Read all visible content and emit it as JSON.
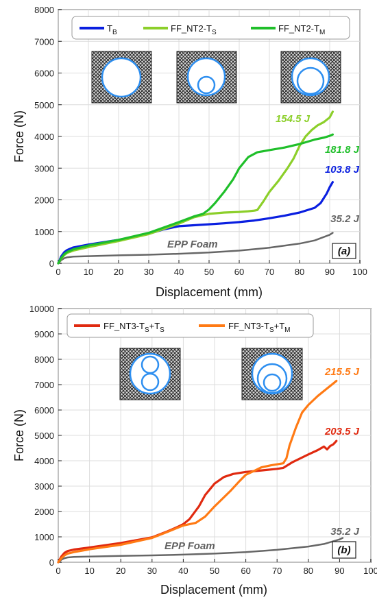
{
  "colors": {
    "T_B": "#0a1fe0",
    "FF_NT2_TS": "#8ccf2a",
    "FF_NT2_TM": "#1fbf2a",
    "FF_NT3_TS_TS": "#e02a10",
    "FF_NT3_TS_TM": "#ff7a14",
    "EPP": "#666666",
    "ring": "#2e8ff0"
  },
  "chart_data": [
    {
      "type": "line",
      "panel_label": "(a)",
      "xlabel": "Displacement (mm)",
      "ylabel": "Force (N)",
      "xlim": [
        0,
        100
      ],
      "ylim": [
        0,
        8000
      ],
      "x_ticks": [
        0,
        10,
        20,
        30,
        40,
        50,
        60,
        70,
        80,
        90,
        100
      ],
      "y_ticks": [
        0,
        1000,
        2000,
        3000,
        4000,
        5000,
        6000,
        7000,
        8000
      ],
      "grid": true,
      "legend_position": "top",
      "legend": [
        {
          "key": "T_B",
          "base": "T",
          "sub": "B"
        },
        {
          "key": "FF_NT2_TS",
          "base": "FF_NT2-T",
          "sub": "S"
        },
        {
          "key": "FF_NT2_TM",
          "base": "FF_NT2-T",
          "sub": "M"
        }
      ],
      "series": [
        {
          "key": "EPP",
          "annotation": "EPP Foam",
          "energy": "35.2 J",
          "x": [
            0,
            1,
            2,
            3,
            5,
            10,
            20,
            30,
            40,
            50,
            60,
            70,
            80,
            85,
            90,
            91
          ],
          "y": [
            0,
            100,
            160,
            190,
            210,
            225,
            250,
            270,
            300,
            340,
            400,
            490,
            620,
            720,
            900,
            960
          ]
        },
        {
          "key": "T_B",
          "energy": "103.8 J",
          "x": [
            0,
            1,
            2,
            3,
            5,
            10,
            20,
            30,
            35,
            40,
            45,
            50,
            55,
            60,
            65,
            70,
            75,
            80,
            85,
            87,
            88,
            89,
            90,
            91
          ],
          "y": [
            0,
            220,
            350,
            420,
            500,
            590,
            740,
            930,
            1070,
            1170,
            1200,
            1230,
            1260,
            1300,
            1350,
            1420,
            1500,
            1600,
            1750,
            1900,
            2050,
            2200,
            2400,
            2560
          ]
        },
        {
          "key": "FF_NT2_TS",
          "energy": "154.5 J",
          "x": [
            0,
            1,
            2,
            3,
            5,
            10,
            20,
            30,
            40,
            45,
            48,
            50,
            55,
            60,
            63,
            65,
            66,
            68,
            70,
            73,
            76,
            78,
            80,
            82,
            84,
            86,
            88,
            90,
            91
          ],
          "y": [
            0,
            150,
            260,
            330,
            400,
            510,
            700,
            920,
            1250,
            1450,
            1520,
            1560,
            1600,
            1620,
            1640,
            1660,
            1680,
            1950,
            2250,
            2600,
            3000,
            3300,
            3700,
            4000,
            4200,
            4350,
            4450,
            4600,
            4780
          ]
        },
        {
          "key": "FF_NT2_TM",
          "energy": "181.8 J",
          "x": [
            0,
            1,
            2,
            3,
            5,
            10,
            20,
            30,
            40,
            45,
            48,
            50,
            52,
            55,
            58,
            60,
            63,
            66,
            70,
            75,
            80,
            85,
            88,
            90,
            91
          ],
          "y": [
            0,
            170,
            290,
            360,
            440,
            560,
            740,
            960,
            1300,
            1480,
            1560,
            1700,
            1900,
            2250,
            2650,
            3000,
            3350,
            3500,
            3570,
            3650,
            3760,
            3900,
            3960,
            4020,
            4060
          ]
        }
      ]
    },
    {
      "type": "line",
      "panel_label": "(b)",
      "xlabel": "Displacement (mm)",
      "ylabel": "Force (N)",
      "xlim": [
        0,
        100
      ],
      "ylim": [
        0,
        10000
      ],
      "x_ticks": [
        0,
        10,
        20,
        30,
        40,
        50,
        60,
        70,
        80,
        90,
        100
      ],
      "y_ticks": [
        0,
        1000,
        2000,
        3000,
        4000,
        5000,
        6000,
        7000,
        8000,
        9000,
        10000
      ],
      "grid": true,
      "legend_position": "top",
      "legend": [
        {
          "key": "FF_NT3_TS_TS",
          "base": "FF_NT3-T",
          "sub": "S",
          "tail": "+T",
          "sub2": "S"
        },
        {
          "key": "FF_NT3_TS_TM",
          "base": "FF_NT3-T",
          "sub": "S",
          "tail": "+T",
          "sub2": "M"
        }
      ],
      "series": [
        {
          "key": "EPP",
          "annotation": "EPP Foam",
          "energy": "35.2 J",
          "x": [
            0,
            1,
            2,
            3,
            5,
            10,
            20,
            30,
            40,
            50,
            60,
            70,
            80,
            85,
            90,
            91
          ],
          "y": [
            0,
            100,
            160,
            190,
            210,
            225,
            250,
            270,
            300,
            340,
            400,
            490,
            620,
            720,
            900,
            960
          ]
        },
        {
          "key": "FF_NT3_TS_TS",
          "energy": "203.5 J",
          "x": [
            0,
            1,
            2,
            3,
            5,
            10,
            20,
            30,
            35,
            38,
            40,
            42,
            45,
            47,
            50,
            53,
            56,
            60,
            65,
            70,
            72,
            75,
            80,
            83,
            85,
            86,
            87,
            88,
            89
          ],
          "y": [
            0,
            230,
            370,
            440,
            500,
            580,
            760,
            980,
            1220,
            1380,
            1500,
            1700,
            2200,
            2650,
            3100,
            3360,
            3480,
            3560,
            3620,
            3680,
            3720,
            3950,
            4250,
            4420,
            4560,
            4450,
            4580,
            4650,
            4780
          ]
        },
        {
          "key": "FF_NT3_TS_TM",
          "energy": "215.5 J",
          "x": [
            0,
            1,
            2,
            3,
            5,
            10,
            20,
            30,
            35,
            40,
            44,
            47,
            50,
            55,
            58,
            60,
            63,
            65,
            68,
            70,
            72,
            73,
            74,
            76,
            78,
            80,
            83,
            86,
            88,
            89
          ],
          "y": [
            0,
            160,
            270,
            340,
            400,
            510,
            690,
            960,
            1200,
            1450,
            1550,
            1800,
            2200,
            2800,
            3200,
            3450,
            3620,
            3740,
            3820,
            3860,
            3900,
            4100,
            4600,
            5300,
            5900,
            6200,
            6550,
            6850,
            7050,
            7150
          ]
        }
      ]
    }
  ]
}
